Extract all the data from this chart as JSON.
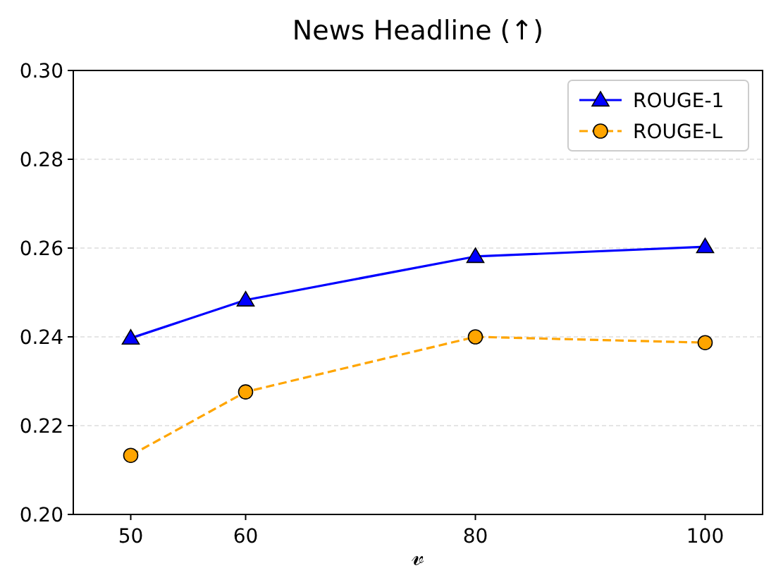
{
  "chart_data": {
    "type": "line",
    "title": "News Headline (↑)",
    "xlabel": "𝓋",
    "x": [
      50,
      60,
      80,
      100
    ],
    "xlim": [
      45,
      105
    ],
    "xticks": [
      50,
      60,
      80,
      100
    ],
    "ylim": [
      0.2,
      0.3
    ],
    "yticks": [
      {
        "value": 0.2,
        "label": "0.20"
      },
      0.22,
      0.24,
      0.26,
      0.28,
      {
        "value": 0.3,
        "label": "0.30"
      }
    ],
    "grid": "y",
    "legend": "top right",
    "series": [
      {
        "name": "ROUGE-1",
        "color": "#0000ff",
        "values": [
          0.2397,
          0.2483,
          0.2581,
          0.2603
        ],
        "marker": "triangle",
        "line_style": "solid"
      },
      {
        "name": "ROUGE-L",
        "color": "#ffa500",
        "values": [
          0.2133,
          0.2276,
          0.24,
          0.2387
        ],
        "marker": "circle",
        "line_style": "dashed"
      }
    ]
  }
}
